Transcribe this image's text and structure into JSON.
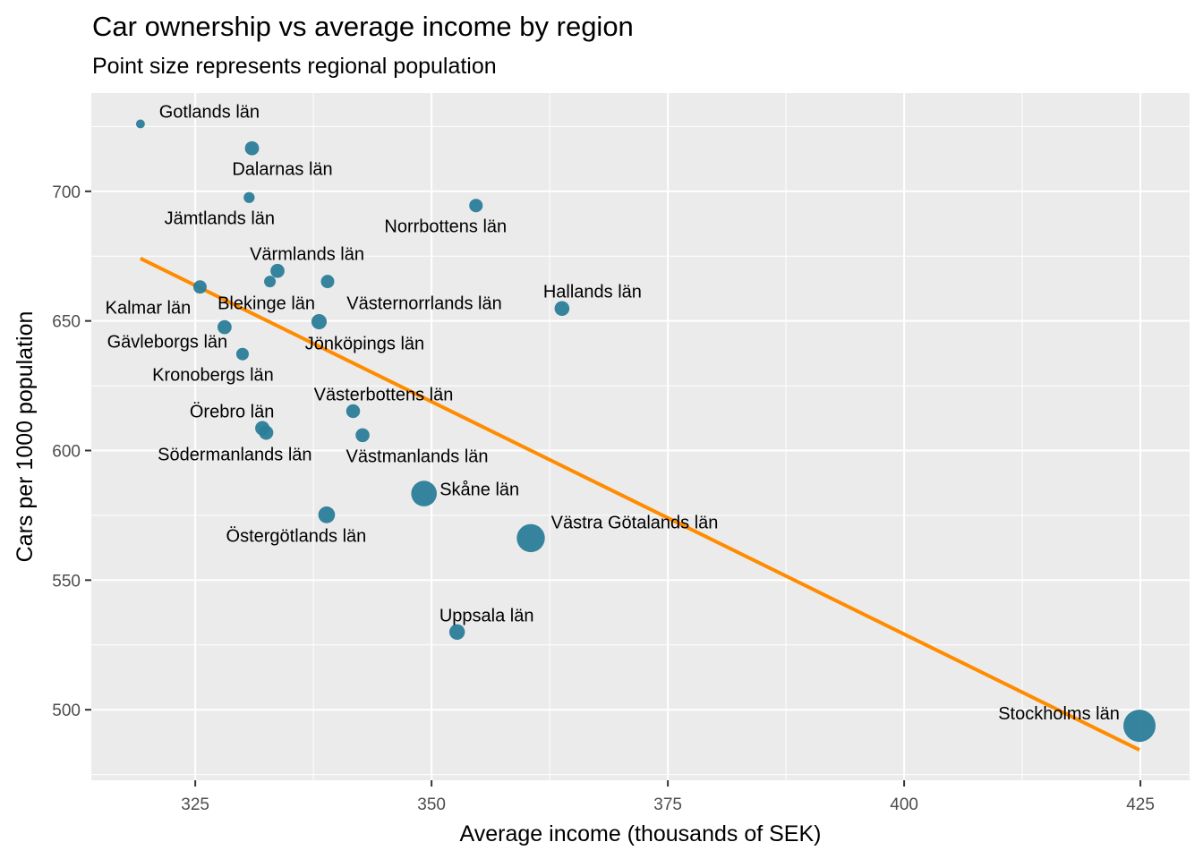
{
  "chart_data": {
    "type": "scatter",
    "title": "Car ownership vs average income by region",
    "subtitle": "Point size represents regional population",
    "xlabel": "Average income (thousands of SEK)",
    "ylabel": "Cars per 1000 population",
    "xlim": [
      314.0,
      430.2
    ],
    "ylim": [
      472.8,
      737.9
    ],
    "x_ticks": [
      325,
      350,
      375,
      400,
      425
    ],
    "y_ticks": [
      500,
      550,
      600,
      650,
      700
    ],
    "grid": true,
    "point_color": "#2b7d99",
    "trend_color": "#ff8c00",
    "panel_color": "#ebebeb",
    "size_encoding": "regional population (relative)",
    "points": [
      {
        "label": "Gotlands län",
        "x": 319.2,
        "y": 726.0,
        "pop": 60
      },
      {
        "label": "Dalarnas län",
        "x": 331.0,
        "y": 716.6,
        "pop": 287
      },
      {
        "label": "Jämtlands län",
        "x": 330.7,
        "y": 697.6,
        "pop": 131
      },
      {
        "label": "Norrbottens län",
        "x": 354.7,
        "y": 694.5,
        "pop": 250
      },
      {
        "label": "Värmlands län",
        "x": 333.7,
        "y": 669.3,
        "pop": 282
      },
      {
        "label": "Hallands län",
        "x": 363.8,
        "y": 654.8,
        "pop": 333
      },
      {
        "label": "Kalmar län",
        "x": 325.5,
        "y": 663.1,
        "pop": 245
      },
      {
        "label": "Blekinge län",
        "x": 332.9,
        "y": 665.2,
        "pop": 159
      },
      {
        "label": "Västernorrlands län",
        "x": 339.0,
        "y": 665.2,
        "pop": 245
      },
      {
        "label": "Gävleborgs län",
        "x": 328.1,
        "y": 647.6,
        "pop": 287
      },
      {
        "label": "Jönköpings län",
        "x": 338.1,
        "y": 649.7,
        "pop": 363
      },
      {
        "label": "Kronobergs län",
        "x": 330.0,
        "y": 637.2,
        "pop": 201
      },
      {
        "label": "Västerbottens län",
        "x": 341.7,
        "y": 615.2,
        "pop": 271
      },
      {
        "label": "Örebro län",
        "x": 332.1,
        "y": 608.6,
        "pop": 304
      },
      {
        "label": "Södermanlands län",
        "x": 332.5,
        "y": 606.9,
        "pop": 297
      },
      {
        "label": "Västmanlands län",
        "x": 342.7,
        "y": 605.9,
        "pop": 275
      },
      {
        "label": "Skåne län",
        "x": 349.2,
        "y": 583.4,
        "pop": 1377
      },
      {
        "label": "Östergötlands län",
        "x": 338.9,
        "y": 575.2,
        "pop": 465
      },
      {
        "label": "Västra Götalands län",
        "x": 360.5,
        "y": 566.2,
        "pop": 1725
      },
      {
        "label": "Uppsala län",
        "x": 352.7,
        "y": 530.0,
        "pop": 383
      },
      {
        "label": "Stockholms län",
        "x": 424.9,
        "y": 493.8,
        "pop": 2377
      }
    ],
    "trend_line": {
      "type": "linear fit",
      "x": [
        319.2,
        424.9
      ],
      "y": [
        674.1,
        484.5
      ]
    }
  }
}
